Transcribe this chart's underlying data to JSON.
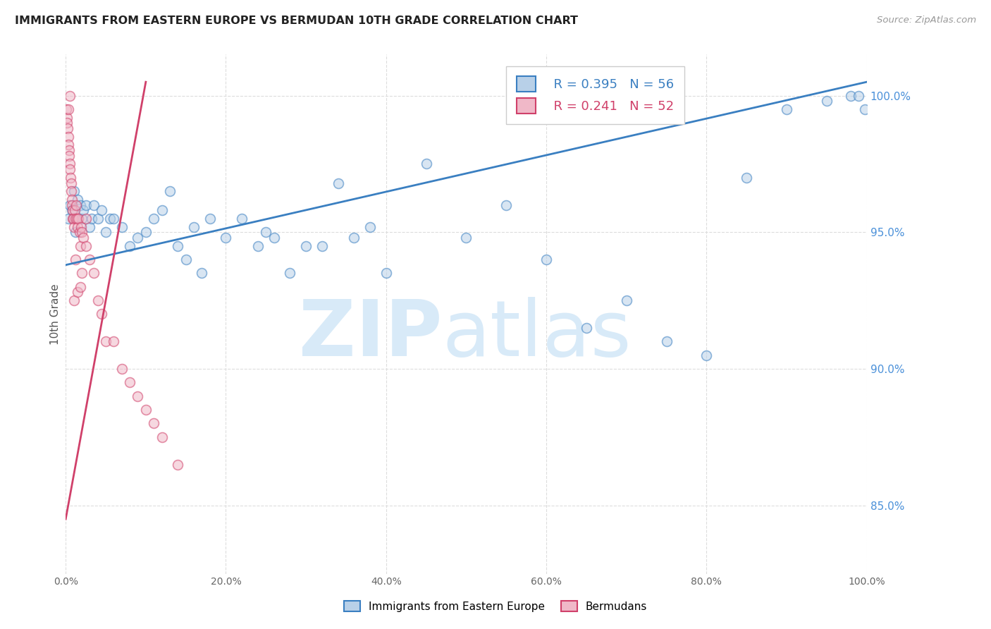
{
  "title": "IMMIGRANTS FROM EASTERN EUROPE VS BERMUDAN 10TH GRADE CORRELATION CHART",
  "source": "Source: ZipAtlas.com",
  "ylabel": "10th Grade",
  "right_yticks": [
    85.0,
    90.0,
    95.0,
    100.0
  ],
  "legend_blue_r": "R = 0.395",
  "legend_blue_n": "N = 56",
  "legend_pink_r": "R = 0.241",
  "legend_pink_n": "N = 52",
  "blue_color": "#b8d0e8",
  "blue_line_color": "#3a7fc1",
  "pink_color": "#f0b8c8",
  "pink_line_color": "#d0406a",
  "legend_text_blue": "#3a7fc1",
  "legend_text_pink": "#d0406a",
  "right_axis_color": "#4a90d9",
  "watermark_color": "#d8eaf8",
  "blue_scatter_x": [
    0.3,
    0.5,
    0.8,
    1.0,
    1.2,
    1.5,
    1.8,
    2.0,
    2.2,
    2.5,
    3.0,
    3.2,
    3.5,
    4.0,
    4.5,
    5.0,
    5.5,
    6.0,
    7.0,
    8.0,
    9.0,
    10.0,
    11.0,
    12.0,
    13.0,
    14.0,
    15.0,
    16.0,
    17.0,
    18.0,
    20.0,
    22.0,
    24.0,
    25.0,
    26.0,
    28.0,
    30.0,
    32.0,
    34.0,
    36.0,
    38.0,
    40.0,
    45.0,
    50.0,
    55.0,
    60.0,
    65.0,
    70.0,
    75.0,
    80.0,
    85.0,
    90.0,
    95.0,
    98.0,
    99.0,
    99.8
  ],
  "blue_scatter_y": [
    95.5,
    96.0,
    95.8,
    96.5,
    95.0,
    96.2,
    96.0,
    95.5,
    95.8,
    96.0,
    95.2,
    95.5,
    96.0,
    95.5,
    95.8,
    95.0,
    95.5,
    95.5,
    95.2,
    94.5,
    94.8,
    95.0,
    95.5,
    95.8,
    96.5,
    94.5,
    94.0,
    95.2,
    93.5,
    95.5,
    94.8,
    95.5,
    94.5,
    95.0,
    94.8,
    93.5,
    94.5,
    94.5,
    96.8,
    94.8,
    95.2,
    93.5,
    97.5,
    94.8,
    96.0,
    94.0,
    91.5,
    92.5,
    91.0,
    90.5,
    97.0,
    99.5,
    99.8,
    100.0,
    100.0,
    99.5
  ],
  "pink_scatter_x": [
    0.1,
    0.15,
    0.2,
    0.25,
    0.3,
    0.35,
    0.4,
    0.45,
    0.5,
    0.55,
    0.6,
    0.65,
    0.7,
    0.75,
    0.8,
    0.85,
    0.9,
    0.95,
    1.0,
    1.1,
    1.2,
    1.3,
    1.4,
    1.5,
    1.6,
    1.7,
    1.8,
    1.9,
    2.0,
    2.2,
    2.5,
    3.0,
    3.5,
    4.0,
    4.5,
    5.0,
    6.0,
    7.0,
    8.0,
    9.0,
    10.0,
    11.0,
    12.0,
    14.0,
    1.0,
    1.2,
    1.5,
    1.8,
    2.0,
    2.5,
    0.3,
    0.5
  ],
  "pink_scatter_y": [
    99.5,
    99.2,
    99.0,
    98.8,
    98.5,
    98.2,
    98.0,
    97.8,
    97.5,
    97.3,
    97.0,
    96.8,
    96.5,
    96.2,
    96.0,
    95.8,
    95.5,
    95.5,
    95.2,
    95.8,
    95.5,
    96.0,
    95.5,
    95.2,
    95.5,
    95.0,
    94.5,
    95.2,
    95.0,
    94.8,
    95.5,
    94.0,
    93.5,
    92.5,
    92.0,
    91.0,
    91.0,
    90.0,
    89.5,
    89.0,
    88.5,
    88.0,
    87.5,
    86.5,
    92.5,
    94.0,
    92.8,
    93.0,
    93.5,
    94.5,
    99.5,
    100.0
  ],
  "blue_line_x0": 0.0,
  "blue_line_x1": 100.0,
  "blue_line_y0": 93.8,
  "blue_line_y1": 100.5,
  "pink_line_x0": 0.0,
  "pink_line_x1": 10.0,
  "pink_line_y0": 84.5,
  "pink_line_y1": 100.5,
  "xlim": [
    0.0,
    100.0
  ],
  "ylim": [
    82.5,
    101.5
  ],
  "xticks": [
    0,
    20,
    40,
    60,
    80,
    100
  ],
  "xticklabels": [
    "0.0%",
    "20.0%",
    "40.0%",
    "60.0%",
    "80.0%",
    "100.0%"
  ],
  "grid_color": "#dddddd",
  "bg_color": "#ffffff",
  "scatter_size": 100,
  "scatter_alpha": 0.55,
  "scatter_linewidth": 1.2
}
